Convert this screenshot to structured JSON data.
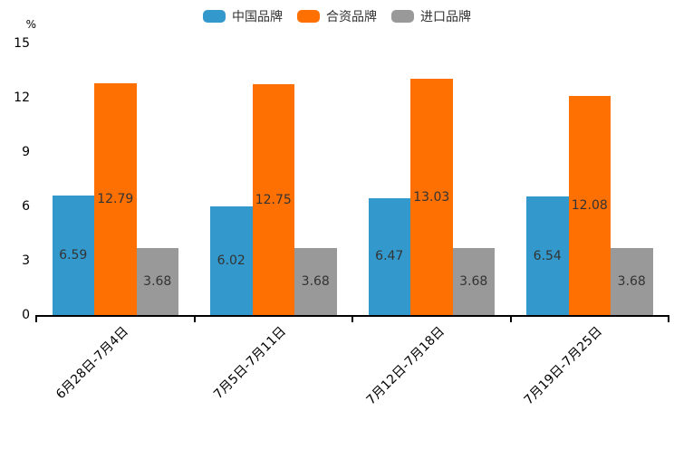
{
  "unit_label": "%",
  "legend": {
    "items": [
      {
        "label": "中国品牌",
        "color": "#3399CC"
      },
      {
        "label": "合资品牌",
        "color": "#FF7003"
      },
      {
        "label": "进口品牌",
        "color": "#999999"
      }
    ]
  },
  "chart_data": {
    "type": "bar",
    "title": "",
    "categories": [
      "6月28日-7月4日",
      "7月5日-7月11日",
      "7月12日-7月18日",
      "7月19日-7月25日"
    ],
    "series": [
      {
        "name": "中国品牌",
        "color": "#3399CC",
        "values": [
          6.59,
          6.02,
          6.47,
          6.54
        ]
      },
      {
        "name": "合资品牌",
        "color": "#FF7003",
        "values": [
          12.79,
          12.75,
          13.03,
          12.08
        ]
      },
      {
        "name": "进口品牌",
        "color": "#999999",
        "values": [
          3.68,
          3.68,
          3.68,
          3.68
        ]
      }
    ],
    "xlabel": "",
    "ylabel": "%",
    "ylim": [
      0,
      15
    ],
    "yticks": [
      0,
      3,
      6,
      9,
      12,
      15
    ],
    "grid": false,
    "legend_position": "top",
    "value_labels": "inside-center"
  }
}
